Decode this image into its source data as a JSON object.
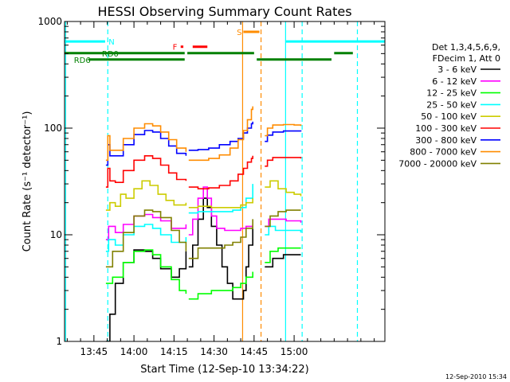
{
  "chart_data": {
    "type": "line",
    "title": "HESSI Observing Summary Count Rates",
    "xlabel": "Start Time (12-Sep-10 13:34:22)",
    "ylabel": "Count Rate (s⁻¹ detector⁻¹)",
    "x_unit": "minutes after 13:34:22",
    "xlim": [
      0,
      120
    ],
    "ylim": [
      1,
      1000
    ],
    "y_scale": "log",
    "x_ticks": [
      {
        "t": 11,
        "label": "13:45"
      },
      {
        "t": 26,
        "label": "14:00"
      },
      {
        "t": 41,
        "label": "14:15"
      },
      {
        "t": 56,
        "label": "14:30"
      },
      {
        "t": 71,
        "label": "14:45"
      },
      {
        "t": 86,
        "label": "15:00"
      }
    ],
    "y_ticks": [
      {
        "v": 1,
        "label": "1"
      },
      {
        "v": 10,
        "label": "10"
      },
      {
        "v": 100,
        "label": "100"
      },
      {
        "v": 1000,
        "label": "1000"
      }
    ],
    "legend_header": [
      "Det 1,3,4,5,6,9,",
      "FDecim 1, Att 0"
    ],
    "segments": [
      [
        15.5,
        45.5
      ],
      [
        46.5,
        70.5
      ],
      [
        75,
        88.5
      ]
    ],
    "series": [
      {
        "name": "3 - 6 keV",
        "color": "#000000",
        "x": [
          15.5,
          17,
          19,
          22,
          26,
          30,
          33,
          36,
          40,
          43,
          45.5,
          46.5,
          48,
          50,
          52,
          53.5,
          55,
          57,
          59,
          61,
          63,
          65,
          67,
          68,
          69,
          70.5,
          75,
          78,
          82,
          85,
          88.5
        ],
        "y": [
          1.0,
          1.8,
          3.5,
          5.5,
          7.2,
          7.0,
          6.0,
          4.8,
          4.0,
          4.8,
          7.0,
          5.0,
          8.0,
          14.0,
          22.0,
          18.0,
          12.0,
          8.0,
          5.0,
          3.5,
          2.5,
          2.5,
          3.0,
          5.0,
          8.0,
          12.0,
          5.0,
          6.0,
          6.5,
          6.5,
          6.5
        ]
      },
      {
        "name": "6 - 12 keV",
        "color": "#ff00ff",
        "x": [
          15.5,
          16.5,
          19,
          22,
          26,
          30,
          33,
          36,
          40,
          43,
          45.5,
          46.5,
          48,
          50,
          52,
          53.5,
          55,
          57,
          60,
          63,
          66,
          68,
          70.5,
          75,
          76.5,
          79,
          83,
          88.5
        ],
        "y": [
          9.0,
          12.0,
          10.5,
          12.5,
          15.0,
          15.5,
          14.5,
          13.5,
          11.5,
          11.5,
          12.5,
          10.0,
          14.0,
          22.0,
          28.0,
          22.0,
          15.0,
          11.5,
          11.0,
          11.0,
          11.5,
          12.0,
          12.5,
          12.0,
          14.0,
          14.0,
          13.5,
          13.0
        ]
      },
      {
        "name": "12 - 25 keV",
        "color": "#00ff00",
        "x": [
          15.5,
          18,
          22,
          26,
          30,
          33,
          36,
          40,
          43,
          45.5,
          46.5,
          50,
          55,
          60,
          63,
          66,
          68,
          70.5,
          75,
          77,
          80,
          83,
          88.5
        ],
        "y": [
          3.5,
          4.0,
          5.5,
          7.0,
          7.2,
          6.5,
          5.0,
          3.8,
          3.0,
          2.8,
          2.5,
          2.8,
          3.0,
          3.0,
          3.2,
          3.5,
          4.0,
          4.5,
          5.5,
          7.0,
          7.5,
          7.5,
          7.5
        ]
      },
      {
        "name": "25 - 50 keV",
        "color": "#00ffff",
        "x": [
          15.5,
          16.5,
          19,
          22,
          26,
          30,
          33,
          36,
          40,
          43,
          45.5,
          46.5,
          50,
          55,
          60,
          63,
          66,
          68,
          70.5,
          75,
          76.5,
          79,
          83,
          88.5
        ],
        "y": [
          7.0,
          9.0,
          8.0,
          10.0,
          12.0,
          12.5,
          11.5,
          10.0,
          8.5,
          8.5,
          9.5,
          16.0,
          16.5,
          16.5,
          16.5,
          17.0,
          18.0,
          22.0,
          30.0,
          10.0,
          12.0,
          11.0,
          11.0,
          10.5
        ]
      },
      {
        "name": "50 - 100 keV",
        "color": "#cccc00",
        "x": [
          15.5,
          17,
          19,
          21,
          23,
          26,
          29,
          32,
          35,
          38,
          41,
          43,
          45.5,
          46.5,
          50,
          55,
          60,
          63,
          66,
          68,
          70.5,
          75,
          77,
          80,
          83,
          86,
          88.5
        ],
        "y": [
          17.0,
          20.0,
          18.5,
          24.0,
          22.0,
          27.0,
          32.0,
          29.0,
          24.0,
          21.0,
          19.0,
          19.0,
          20.0,
          18.0,
          18.5,
          18.0,
          18.0,
          18.0,
          19.0,
          20.0,
          22.0,
          28.0,
          32.0,
          27.0,
          25.0,
          24.0,
          23.0
        ]
      },
      {
        "name": "100 - 300 keV",
        "color": "#ff0000",
        "x": [
          15.5,
          16.2,
          17,
          19,
          22,
          26,
          30,
          33,
          36,
          39,
          42,
          45.5,
          46.5,
          50,
          54,
          58,
          62,
          65,
          67,
          68.5,
          70,
          70.5,
          75,
          76,
          78,
          82,
          86,
          88.5
        ],
        "y": [
          28.0,
          42.0,
          32.0,
          31.0,
          40.0,
          50.0,
          55.0,
          52.0,
          45.0,
          38.0,
          33.0,
          32.0,
          28.0,
          27.0,
          27.5,
          29.0,
          32.0,
          37.0,
          42.0,
          48.0,
          52.0,
          55.0,
          44.0,
          50.0,
          53.0,
          53.0,
          53.0,
          52.0
        ]
      },
      {
        "name": "300 - 800 keV",
        "color": "#0000ff",
        "x": [
          15.5,
          16.2,
          17,
          19,
          22,
          26,
          30,
          33,
          36,
          39,
          42,
          45.5,
          46.5,
          50,
          54,
          58,
          62,
          65,
          67,
          68.5,
          70,
          70.5,
          75,
          76,
          78,
          82,
          86,
          88.5
        ],
        "y": [
          45.0,
          70.0,
          55.0,
          55.0,
          70.0,
          87.0,
          95.0,
          92.0,
          80.0,
          68.0,
          58.0,
          55.0,
          62.0,
          63.0,
          65.0,
          70.0,
          75.0,
          80.0,
          90.0,
          100.0,
          110.0,
          115.0,
          75.0,
          86.0,
          92.0,
          94.0,
          94.0,
          93.0
        ]
      },
      {
        "name": "800 - 7000 keV",
        "color": "#ff8c00",
        "x": [
          15.5,
          16.2,
          17,
          19,
          22,
          26,
          30,
          33,
          36,
          39,
          42,
          45.5,
          46.5,
          50,
          54,
          58,
          62,
          65,
          67,
          68.5,
          70,
          70.5,
          75,
          76,
          78,
          82,
          86,
          88.5
        ],
        "y": [
          50.0,
          85.0,
          62.0,
          62.0,
          80.0,
          100.0,
          110.0,
          105.0,
          92.0,
          78.0,
          65.0,
          60.0,
          50.0,
          50.0,
          52.0,
          56.0,
          65.0,
          78.0,
          95.0,
          120.0,
          150.0,
          160.0,
          85.0,
          100.0,
          107.0,
          108.0,
          107.0,
          105.0
        ]
      },
      {
        "name": "7000 - 20000 keV",
        "color": "#808000",
        "x": [
          15.5,
          18,
          22,
          26,
          30,
          33,
          36,
          40,
          43,
          45.5,
          46.5,
          50,
          55,
          60,
          63,
          66,
          68,
          70.5,
          75,
          77,
          80,
          83,
          86,
          88.5
        ],
        "y": [
          5.0,
          7.0,
          10.5,
          15.0,
          17.0,
          16.5,
          14.5,
          11.0,
          8.5,
          7.0,
          6.0,
          7.5,
          7.5,
          8.0,
          8.5,
          9.5,
          11.5,
          14.0,
          12.0,
          15.0,
          16.5,
          17.0,
          17.0,
          17.0
        ]
      }
    ],
    "annotations": {
      "bars": [
        {
          "label": "N",
          "color": "#00ffff",
          "value": 650,
          "x0": 0,
          "x1": 15.2,
          "label_at": 16.5
        },
        {
          "label": "",
          "color": "#00ffff",
          "value": 650,
          "x0": 83,
          "x1": 120
        },
        {
          "label": "RD0",
          "color": "#008000",
          "value": 505,
          "x0": 0,
          "x1": 45,
          "label_at": 14
        },
        {
          "label": "",
          "color": "#008000",
          "value": 505,
          "x0": 46,
          "x1": 71
        },
        {
          "label": "",
          "color": "#008000",
          "value": 505,
          "x0": 101,
          "x1": 108
        },
        {
          "label": "RD6",
          "color": "#008000",
          "value": 440,
          "x0": 9,
          "x1": 45,
          "label_at": 3.5
        },
        {
          "label": "",
          "color": "#008000",
          "value": 440,
          "x0": 72,
          "x1": 100
        },
        {
          "label": "S",
          "color": "#ff8c00",
          "value": 800,
          "x0": 67,
          "x1": 73,
          "label_at": 64.5
        },
        {
          "label": "F",
          "color": "#ff0000",
          "value": 580,
          "x0": 48,
          "x1": 53.5,
          "label_at": 40.5
        },
        {
          "label": "",
          "color": "#ff0000",
          "value": 580,
          "x0": 43.5,
          "x1": 44.5
        }
      ],
      "vlines": [
        {
          "t": 0.4,
          "color": "#00ffff",
          "style": "solid"
        },
        {
          "t": 16.2,
          "color": "#00ffff",
          "style": "dashed"
        },
        {
          "t": 82.8,
          "color": "#00ffff",
          "style": "solid"
        },
        {
          "t": 89.0,
          "color": "#00ffff",
          "style": "dashed"
        },
        {
          "t": 109.7,
          "color": "#00ffff",
          "style": "dashed"
        },
        {
          "t": 66.7,
          "color": "#ff8c00",
          "style": "solid"
        },
        {
          "t": 73.6,
          "color": "#ff8c00",
          "style": "dashed"
        }
      ]
    }
  },
  "footer": {
    "timestamp": "12-Sep-2010 15:34"
  }
}
